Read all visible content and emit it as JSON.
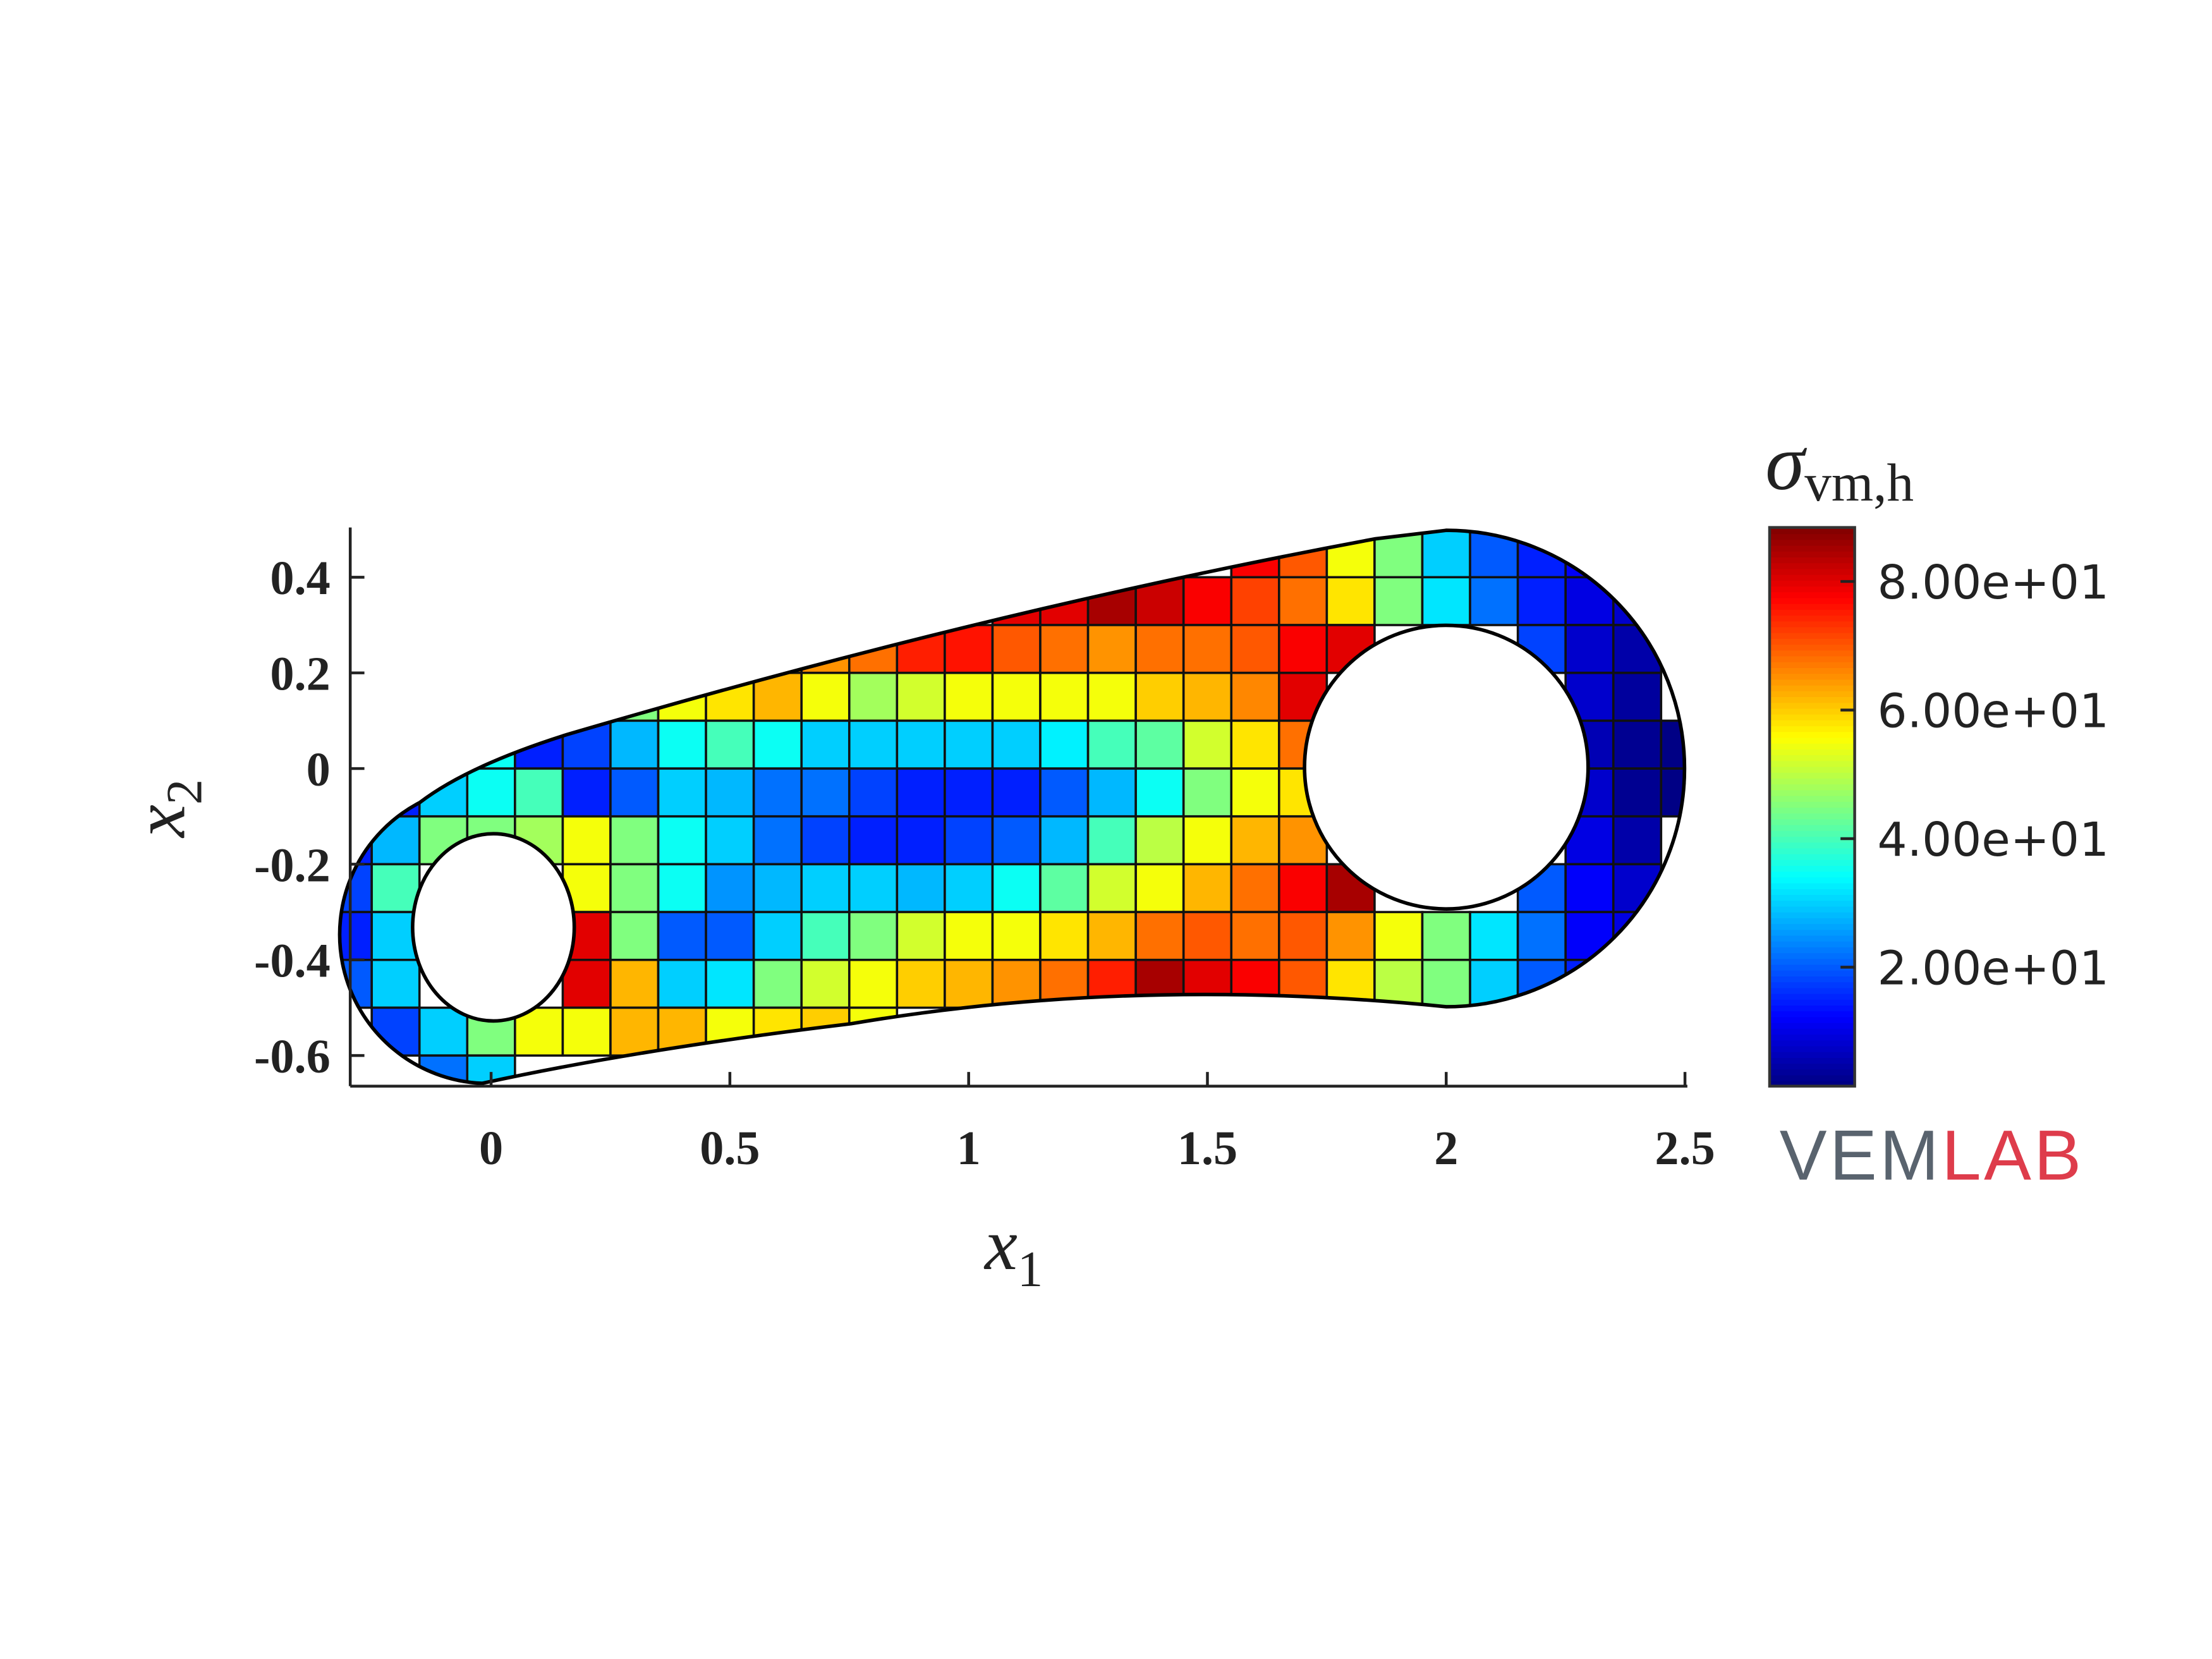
{
  "chart_data": {
    "type": "heatmap",
    "colormap": "jet",
    "x": [
      -0.3,
      -0.2,
      -0.1,
      0,
      0.1,
      0.2,
      0.3,
      0.4,
      0.5,
      0.6,
      0.7,
      0.8,
      0.9,
      1,
      1.1,
      1.2,
      1.3,
      1.4,
      1.5,
      1.6,
      1.7,
      1.8,
      1.9,
      2,
      2.1,
      2.2,
      2.3,
      2.4,
      2.5
    ],
    "y": [
      0.45,
      0.35,
      0.25,
      0.15,
      0.05,
      -0.05,
      -0.15,
      -0.25,
      -0.35,
      -0.45,
      -0.55,
      -0.65
    ],
    "z": [
      [
        null,
        null,
        null,
        null,
        null,
        null,
        null,
        null,
        null,
        null,
        null,
        null,
        null,
        null,
        null,
        null,
        null,
        null,
        null,
        78,
        70,
        55,
        45,
        30,
        20,
        15,
        12,
        null,
        null
      ],
      [
        null,
        null,
        null,
        null,
        null,
        null,
        null,
        null,
        null,
        null,
        null,
        null,
        null,
        null,
        80,
        80,
        85,
        82,
        78,
        72,
        68,
        58,
        45,
        32,
        22,
        15,
        10,
        8,
        null
      ],
      [
        null,
        null,
        null,
        null,
        null,
        null,
        null,
        null,
        null,
        62,
        65,
        68,
        75,
        76,
        70,
        68,
        65,
        68,
        68,
        70,
        78,
        80,
        null,
        null,
        null,
        18,
        8,
        5,
        null
      ],
      [
        null,
        null,
        null,
        null,
        null,
        null,
        45,
        55,
        58,
        62,
        55,
        48,
        52,
        55,
        55,
        55,
        55,
        60,
        62,
        66,
        80,
        null,
        null,
        null,
        null,
        null,
        8,
        4,
        null
      ],
      [
        null,
        null,
        null,
        35,
        15,
        18,
        28,
        35,
        40,
        35,
        30,
        30,
        30,
        30,
        30,
        33,
        40,
        42,
        52,
        58,
        68,
        null,
        null,
        null,
        null,
        null,
        6,
        3,
        2
      ],
      [
        null,
        15,
        30,
        35,
        40,
        15,
        20,
        30,
        28,
        22,
        22,
        18,
        15,
        15,
        15,
        20,
        28,
        35,
        45,
        55,
        58,
        null,
        null,
        null,
        null,
        null,
        8,
        3,
        2
      ],
      [
        15,
        28,
        45,
        45,
        48,
        55,
        45,
        35,
        30,
        22,
        18,
        15,
        15,
        18,
        20,
        28,
        40,
        50,
        55,
        62,
        65,
        null,
        null,
        null,
        null,
        null,
        10,
        5,
        null
      ],
      [
        18,
        40,
        null,
        null,
        null,
        55,
        45,
        35,
        25,
        28,
        30,
        30,
        28,
        30,
        35,
        42,
        52,
        55,
        62,
        68,
        78,
        85,
        null,
        null,
        null,
        20,
        12,
        8,
        null
      ],
      [
        15,
        30,
        null,
        null,
        null,
        80,
        45,
        20,
        20,
        30,
        40,
        45,
        52,
        55,
        55,
        58,
        62,
        68,
        70,
        68,
        70,
        65,
        55,
        45,
        32,
        22,
        12,
        10,
        null
      ],
      [
        20,
        30,
        null,
        null,
        null,
        80,
        62,
        30,
        32,
        45,
        52,
        55,
        60,
        62,
        65,
        68,
        75,
        85,
        80,
        78,
        70,
        58,
        50,
        45,
        30,
        20,
        15,
        null,
        null
      ],
      [
        null,
        18,
        30,
        45,
        55,
        55,
        62,
        62,
        55,
        58,
        60,
        55,
        null,
        null,
        null,
        null,
        null,
        null,
        null,
        null,
        null,
        null,
        null,
        null,
        null,
        null,
        null,
        null,
        null
      ],
      [
        null,
        null,
        22,
        30,
        null,
        null,
        null,
        null,
        null,
        null,
        null,
        null,
        null,
        null,
        null,
        null,
        null,
        null,
        null,
        null,
        null,
        null,
        null,
        null,
        null,
        null,
        null,
        null,
        null
      ]
    ],
    "xlim": [
      -0.295,
      2.505
    ],
    "ylim": [
      -0.664,
      0.504
    ],
    "xticks": [
      0,
      0.5,
      1,
      1.5,
      2,
      2.5
    ],
    "yticks": [
      -0.6,
      -0.4,
      -0.2,
      0,
      0.2,
      0.4
    ],
    "xlabel": {
      "symbol": "x",
      "subscript": "1"
    },
    "ylabel": {
      "symbol": "x",
      "subscript": "2"
    },
    "clim": [
      1.5,
      88.4
    ],
    "cticks": [
      {
        "value": 20,
        "label": "2.00e+01"
      },
      {
        "value": 40,
        "label": "4.00e+01"
      },
      {
        "value": 60,
        "label": "6.00e+01"
      },
      {
        "value": 80,
        "label": "8.00e+01"
      }
    ],
    "colorbar_label": {
      "symbol": "σ",
      "subscript": "vm,h"
    },
    "logo": {
      "first": "VEM",
      "second": "LAB"
    }
  }
}
